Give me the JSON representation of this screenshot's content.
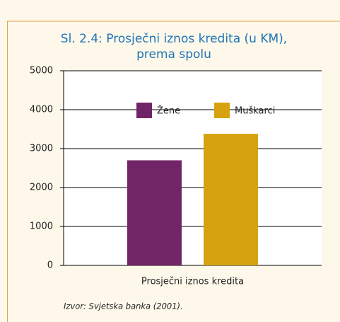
{
  "chart_data": {
    "type": "bar",
    "title": [
      "Sl. 2.4: Prosječni iznos kredita (u KM),",
      "prema spolu"
    ],
    "categories": [
      "Prosječni iznos kredita"
    ],
    "series": [
      {
        "name": "Žene",
        "color": "#722566",
        "values": [
          2700
        ]
      },
      {
        "name": "Muškarci",
        "color": "#d6a20f",
        "values": [
          3380
        ]
      }
    ],
    "ylim": [
      0,
      5000
    ],
    "yticks": [
      0,
      1000,
      2000,
      3000,
      4000,
      5000
    ],
    "grid": true,
    "legend": "top",
    "source": "Izvor: Svjetska banka (2001)."
  }
}
